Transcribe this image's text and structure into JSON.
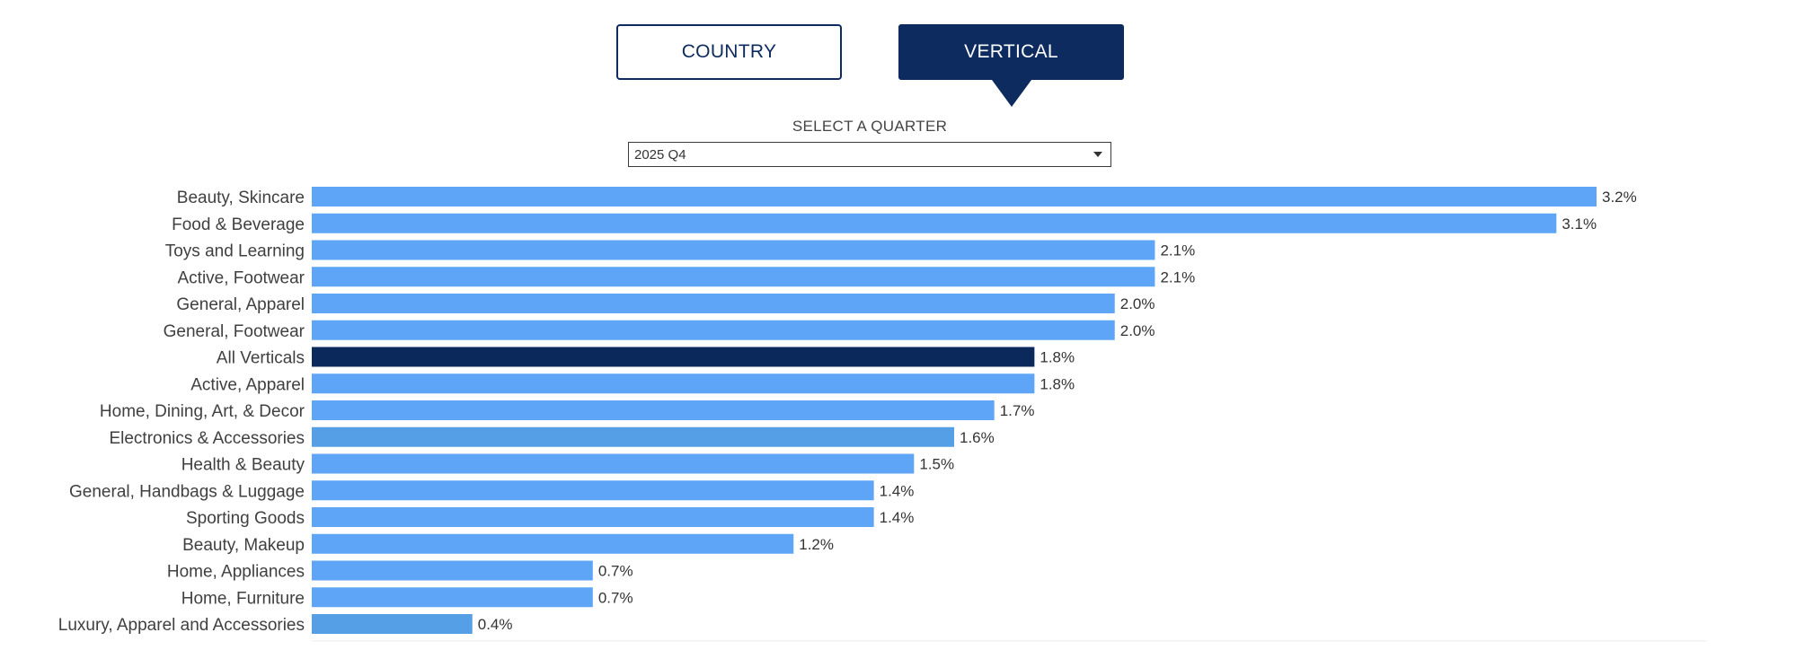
{
  "toggles": {
    "country_label": "COUNTRY",
    "vertical_label": "VERTICAL",
    "active": "VERTICAL"
  },
  "quarter": {
    "label": "SELECT A QUARTER",
    "selected": "2025 Q4"
  },
  "colors": {
    "bar": "#5ea5f7",
    "bar_alt": "#559fe6",
    "highlight": "#0b2a5b",
    "toggle_active": "#0d2b5e"
  },
  "chart_data": {
    "type": "bar",
    "orientation": "horizontal",
    "title": "",
    "xlabel": "",
    "ylabel": "",
    "xlim": [
      0,
      3.2
    ],
    "grid": false,
    "categories": [
      "Beauty, Skincare",
      "Food & Beverage",
      "Toys and Learning",
      "Active, Footwear",
      "General, Apparel",
      "General, Footwear",
      "All Verticals",
      "Active, Apparel",
      "Home, Dining, Art, & Decor",
      "Electronics & Accessories",
      "Health & Beauty",
      "General, Handbags & Luggage",
      "Sporting Goods",
      "Beauty, Makeup",
      "Home, Appliances",
      "Home, Furniture",
      "Luxury, Apparel and Accessories"
    ],
    "values": [
      3.2,
      3.1,
      2.1,
      2.1,
      2.0,
      2.0,
      1.8,
      1.8,
      1.7,
      1.6,
      1.5,
      1.4,
      1.4,
      1.2,
      0.7,
      0.7,
      0.4
    ],
    "value_labels": [
      "3.2%",
      "3.1%",
      "2.1%",
      "2.1%",
      "2.0%",
      "2.0%",
      "1.8%",
      "1.8%",
      "1.7%",
      "1.6%",
      "1.5%",
      "1.4%",
      "1.4%",
      "1.2%",
      "0.7%",
      "0.7%",
      "0.4%"
    ],
    "highlight_category": "All Verticals"
  }
}
